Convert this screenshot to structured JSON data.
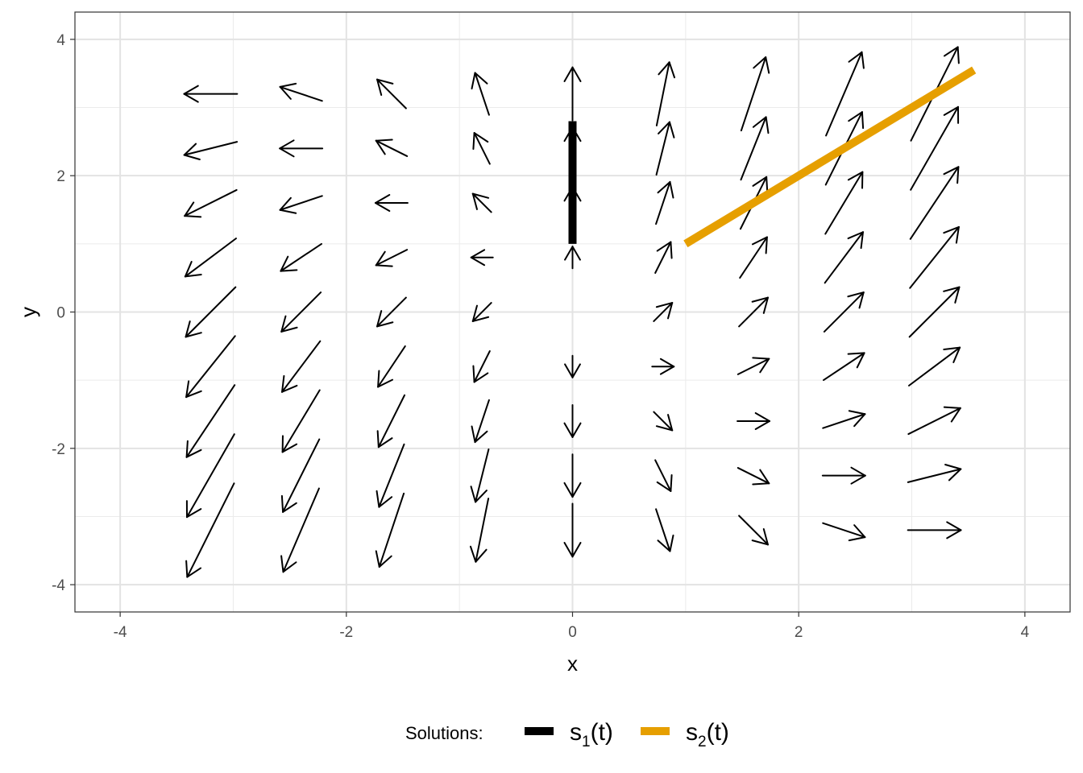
{
  "chart_data": {
    "type": "vector-field",
    "xlabel": "x",
    "ylabel": "y",
    "xlim": [
      -4.4,
      4.4
    ],
    "ylim": [
      -4.4,
      4.4
    ],
    "x_ticks": [
      -4,
      -2,
      0,
      2,
      4
    ],
    "y_ticks": [
      -4,
      -2,
      0,
      2,
      4
    ],
    "x_tick_labels": [
      "-4",
      "-2",
      "0",
      "2",
      "4"
    ],
    "y_tick_labels": [
      "-4",
      "-2",
      "0",
      "2",
      "4"
    ],
    "grid": true,
    "field": {
      "equations": [
        "x' = x",
        "y' = x + y"
      ],
      "grid_x": [
        -3.2,
        -2.4,
        -1.6,
        -0.8,
        0,
        0.8,
        1.6,
        2.4,
        3.2
      ],
      "grid_y": [
        -3.2,
        -2.4,
        -1.6,
        -0.8,
        0,
        0.8,
        1.6,
        2.4,
        3.2
      ],
      "arrow_color": "#000000"
    },
    "legend": {
      "position": "bottom",
      "title": "Solutions:",
      "entries": [
        {
          "base": "s",
          "sub": "1",
          "suffix": "(t)",
          "color": "#000000"
        },
        {
          "base": "s",
          "sub": "2",
          "suffix": "(t)",
          "color": "#E69F00"
        }
      ]
    },
    "series": [
      {
        "label": "s1(t)",
        "color": "#000000",
        "x": [
          0,
          0
        ],
        "y": [
          1,
          2.8
        ]
      },
      {
        "label": "s2(t)",
        "color": "#E69F00",
        "x": [
          1,
          3.55
        ],
        "y": [
          1,
          3.55
        ]
      }
    ]
  }
}
